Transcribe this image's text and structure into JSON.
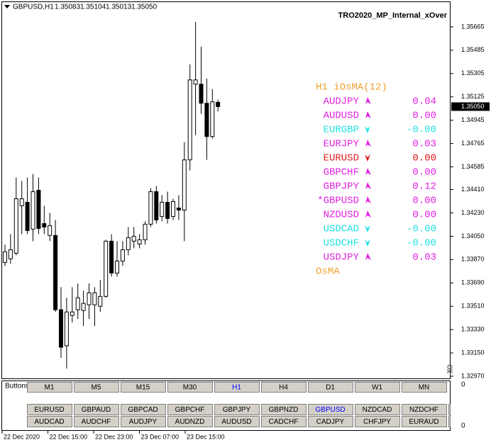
{
  "header": {
    "symbol": "GBPUSD,H1",
    "open": "1.35083",
    "high": "1.35104",
    "low": "1.35013",
    "close": "1.35050"
  },
  "expert_name": "TRO2020_MP_Internal_xOver",
  "chart_data": {
    "type": "candlestick",
    "ohlc": [
      [
        1.33848,
        1.33985,
        1.33821,
        1.3393
      ],
      [
        1.33876,
        1.34066,
        1.33837,
        1.33946
      ],
      [
        1.33919,
        1.34503,
        1.33903,
        1.34339
      ],
      [
        1.34285,
        1.34476,
        1.34066,
        1.34339
      ],
      [
        1.34312,
        1.34503,
        1.34066,
        1.34094
      ],
      [
        1.34105,
        1.3453,
        1.34012,
        1.34394
      ],
      [
        1.34405,
        1.34503,
        1.34066,
        1.3411
      ],
      [
        1.34148,
        1.34285,
        1.34066,
        1.34121
      ],
      [
        1.34056,
        1.3423,
        1.34012,
        1.34132
      ],
      [
        1.34056,
        1.34176,
        1.33466,
        1.33483
      ],
      [
        1.33483,
        1.33657,
        1.33112,
        1.33194
      ],
      [
        1.33205,
        1.33575,
        1.3303,
        1.33466
      ],
      [
        1.33439,
        1.33657,
        1.33385,
        1.33466
      ],
      [
        1.33483,
        1.33685,
        1.33412,
        1.33575
      ],
      [
        1.33477,
        1.3363,
        1.33357,
        1.33532
      ],
      [
        1.33521,
        1.33685,
        1.33412,
        1.33614
      ],
      [
        1.33521,
        1.33657,
        1.33357,
        1.33614
      ],
      [
        1.3351,
        1.33712,
        1.33466,
        1.33586
      ],
      [
        1.33586,
        1.34023,
        1.33575,
        1.34012
      ],
      [
        1.34012,
        1.34066,
        1.33739,
        1.33766
      ],
      [
        1.33766,
        1.34012,
        1.33739,
        1.33859
      ],
      [
        1.33859,
        1.34012,
        1.33821,
        1.33946
      ],
      [
        1.33946,
        1.34121,
        1.33903,
        1.34039
      ],
      [
        1.34012,
        1.34121,
        1.33957,
        1.3405
      ],
      [
        1.3399,
        1.34066,
        1.33957,
        1.34023
      ],
      [
        1.34023,
        1.34165,
        1.33985,
        1.34143
      ],
      [
        1.34143,
        1.34421,
        1.34121,
        1.34394
      ],
      [
        1.34394,
        1.34438,
        1.34148,
        1.34176
      ],
      [
        1.34203,
        1.34367,
        1.34165,
        1.34312
      ],
      [
        1.34312,
        1.34394,
        1.34148,
        1.34187
      ],
      [
        1.34203,
        1.34339,
        1.34176,
        1.34317
      ],
      [
        1.34268,
        1.34367,
        1.34176,
        1.34252
      ],
      [
        1.34252,
        1.34776,
        1.34012,
        1.34639
      ],
      [
        1.34639,
        1.35376,
        1.34558,
        1.35256
      ],
      [
        1.35223,
        1.35703,
        1.3483,
        1.35256
      ],
      [
        1.35223,
        1.35512,
        1.34994,
        1.35076
      ],
      [
        1.35076,
        1.35267,
        1.34639,
        1.34819
      ],
      [
        1.34819,
        1.35185,
        1.34803,
        1.35087
      ],
      [
        1.35083,
        1.35104,
        1.35013,
        1.3505
      ]
    ],
    "ylim": [
      1.32948,
      1.35856
    ],
    "yticks": [
      1.35665,
      1.35485,
      1.35305,
      1.35125,
      1.34945,
      1.34765,
      1.34585,
      {
        "value": 1.3441,
        "label": "1.34410"
      },
      {
        "value": 1.3423,
        "label": "1.34230"
      },
      {
        "value": 1.3405,
        "label": "1.34050"
      },
      {
        "value": 1.3387,
        "label": "1.33870"
      },
      {
        "value": 1.3369,
        "label": "1.33690"
      },
      {
        "value": 1.3351,
        "label": "1.33510"
      },
      {
        "value": 1.3333,
        "label": "1.33330"
      },
      {
        "value": 1.3315,
        "label": "1.33150"
      },
      {
        "value": 1.3297,
        "label": "1.32970"
      }
    ],
    "last_price": {
      "value": 1.3505,
      "label": "1.35050"
    },
    "time_labels": [
      "22 Dec 2020",
      "22 Dec 15:00",
      "22 Dec 23:00",
      "23 Dec 07:00",
      "23 Dec 15:00"
    ]
  },
  "indicator": {
    "title": "H1 iOsMA(12)",
    "rows": [
      {
        "symbol": "AUDJPY",
        "value": "0.04",
        "color": "#e020e0",
        "direction": "up"
      },
      {
        "symbol": "AUDUSD",
        "value": "0.00",
        "color": "#e020e0",
        "direction": "up"
      },
      {
        "symbol": "EURGBP",
        "value": "-0.00",
        "color": "#20e0e0",
        "direction": "down"
      },
      {
        "symbol": "EURJPY",
        "value": "0.03",
        "color": "#e020e0",
        "direction": "up"
      },
      {
        "symbol": "EURUSD",
        "value": "0.00",
        "color": "#e01818",
        "direction": "down"
      },
      {
        "symbol": "GBPCHF",
        "value": "0.00",
        "color": "#e020e0",
        "direction": "up"
      },
      {
        "symbol": "GBPJPY",
        "value": "0.12",
        "color": "#e020e0",
        "direction": "up"
      },
      {
        "symbol": "*GBPUSD",
        "value": "0.00",
        "color": "#e020e0",
        "direction": "up"
      },
      {
        "symbol": "NZDUSD",
        "value": "0.00",
        "color": "#e020e0",
        "direction": "up"
      },
      {
        "symbol": "USDCAD",
        "value": "-0.00",
        "color": "#20e0e0",
        "direction": "down"
      },
      {
        "symbol": "USDCHF",
        "value": "-0.00",
        "color": "#20e0e0",
        "direction": "down"
      },
      {
        "symbol": "USDJPY",
        "value": "0.03",
        "color": "#e020e0",
        "direction": "up"
      }
    ],
    "footer": "OsMA"
  },
  "subwindow": {
    "label": "Buttons",
    "axis_top": "0",
    "axis_bottom": "0"
  },
  "timeframes": [
    "M1",
    "M5",
    "M15",
    "M30",
    "H1",
    "H4",
    "D1",
    "W1",
    "MN"
  ],
  "active_timeframe": 4,
  "symbol_rows": [
    [
      "EURUSD",
      "GBPAUD",
      "GBPCAD",
      "GBPCHF",
      "GBPJPY",
      "GBPNZD",
      "GBPUSD",
      "NZDCAD",
      "NZDCHF"
    ],
    [
      "AUDCAD",
      "AUDCHF",
      "AUDJPY",
      "AUDNZD",
      "AUDUSD",
      "CADCHF",
      "CADJPY",
      "CHFJPY",
      "EURAUD"
    ]
  ],
  "active_symbol": [
    0,
    6
  ]
}
